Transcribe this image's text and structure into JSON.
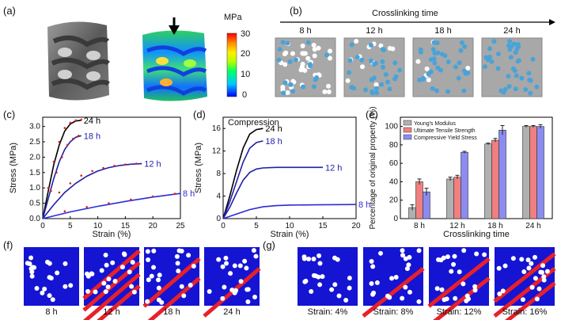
{
  "panel_labels": [
    "(a)",
    "(b)",
    "(c)",
    "(d)",
    "(e)",
    "(f)",
    "(g)"
  ],
  "a": {
    "colorbar_unit": "MPa",
    "colorbar_ticks": [
      "30",
      "20",
      "10",
      "0"
    ],
    "colors": [
      "#0000ff",
      "#00c8ff",
      "#00ff66",
      "#b4ff00",
      "#ffee00",
      "#ff8800",
      "#ff0000"
    ]
  },
  "b": {
    "arrow_label": "Crosslinking time",
    "tiles": [
      {
        "label": "8 h",
        "white": 40,
        "blue": 18
      },
      {
        "label": "12 h",
        "white": 12,
        "blue": 30
      },
      {
        "label": "18 h",
        "white": 6,
        "blue": 34
      },
      {
        "label": "24 h",
        "white": 0,
        "blue": 38
      }
    ],
    "colors": {
      "matrix": "#a8a8a8",
      "white_dot": "#ffffff",
      "blue_dot": "#4aa3d8"
    }
  },
  "f": {
    "tiles": [
      {
        "label": "8 h"
      },
      {
        "label": "12 h"
      },
      {
        "label": "18 h"
      },
      {
        "label": "24 h"
      }
    ],
    "colors": {
      "bg": "#1414d2",
      "band": "#e8202a",
      "dot": "#ffffff"
    }
  },
  "g": {
    "tiles": [
      {
        "label": "Strain: 4%"
      },
      {
        "label": "Strain: 8%"
      },
      {
        "label": "Strain: 12%"
      },
      {
        "label": "Strain: 16%"
      }
    ]
  },
  "chart_data": [
    {
      "panel": "c",
      "type": "line",
      "xlabel": "Strain (%)",
      "ylabel": "Stress (MPa)",
      "xlim": [
        0,
        25
      ],
      "ylim": [
        0,
        3.3
      ],
      "xticks": [
        "0",
        "5",
        "10",
        "15",
        "20",
        "25"
      ],
      "yticks": [
        "0.0",
        "0.5",
        "1.0",
        "1.5",
        "2.0",
        "2.5",
        "3.0"
      ],
      "series": [
        {
          "name": "24 h",
          "color": "#000000",
          "x": [
            0,
            1,
            2,
            3,
            4,
            5,
            6,
            7
          ],
          "y": [
            0,
            0.9,
            1.75,
            2.4,
            2.85,
            3.08,
            3.18,
            3.2
          ]
        },
        {
          "name": "18 h",
          "color": "#1f1fa8",
          "x": [
            0,
            1,
            2,
            3,
            4,
            5,
            6,
            7
          ],
          "y": [
            0,
            0.65,
            1.3,
            1.85,
            2.25,
            2.5,
            2.65,
            2.7
          ]
        },
        {
          "name": "12 h",
          "color": "#1f1fa8",
          "x": [
            0,
            2,
            4,
            6,
            8,
            10,
            12,
            14,
            16,
            18
          ],
          "y": [
            0,
            0.45,
            0.85,
            1.15,
            1.38,
            1.55,
            1.66,
            1.73,
            1.77,
            1.79
          ]
        },
        {
          "name": "8 h",
          "color": "#2b2bd8",
          "x": [
            0,
            5,
            10,
            15,
            20,
            25
          ],
          "y": [
            0,
            0.22,
            0.4,
            0.56,
            0.7,
            0.82
          ]
        }
      ],
      "dots": {
        "color": "#e02020",
        "points": [
          [
            1,
            1.0
          ],
          [
            2,
            1.85
          ],
          [
            3,
            2.5
          ],
          [
            4,
            2.95
          ],
          [
            5,
            3.12
          ],
          [
            6,
            3.2
          ],
          [
            7,
            3.22
          ],
          [
            1.5,
            0.9
          ],
          [
            2.5,
            1.5
          ],
          [
            3.5,
            2.0
          ],
          [
            4.5,
            2.4
          ],
          [
            5.5,
            2.6
          ],
          [
            6.5,
            2.7
          ],
          [
            3,
            0.85
          ],
          [
            5,
            1.15
          ],
          [
            7,
            1.4
          ],
          [
            9,
            1.55
          ],
          [
            11,
            1.65
          ],
          [
            13,
            1.72
          ],
          [
            15,
            1.76
          ],
          [
            17,
            1.79
          ],
          [
            4,
            0.24
          ],
          [
            8,
            0.38
          ],
          [
            12,
            0.5
          ],
          [
            16,
            0.62
          ],
          [
            20,
            0.72
          ],
          [
            24,
            0.81
          ]
        ]
      }
    },
    {
      "panel": "d",
      "type": "line",
      "annotation": "Compression",
      "xlabel": "Strain (%)",
      "ylabel": "Stress (MPa)",
      "xlim": [
        0,
        20
      ],
      "ylim": [
        0,
        18
      ],
      "xticks": [
        "0",
        "5",
        "10",
        "15",
        "20"
      ],
      "yticks": [
        "0",
        "4",
        "8",
        "12",
        "16"
      ],
      "series": [
        {
          "name": "24 h",
          "color": "#000000",
          "x": [
            0,
            1,
            2,
            3,
            4,
            5,
            6
          ],
          "y": [
            0,
            4,
            8.5,
            12.5,
            15,
            15.8,
            16
          ]
        },
        {
          "name": "18 h",
          "color": "#1f1fa8",
          "x": [
            0,
            1,
            2,
            3,
            4,
            5,
            6
          ],
          "y": [
            0,
            3,
            6.5,
            10,
            12.5,
            13.5,
            13.8
          ]
        },
        {
          "name": "12 h",
          "color": "#1f1fa8",
          "x": [
            0,
            1,
            2,
            3,
            4,
            5,
            6,
            8,
            10,
            12,
            15
          ],
          "y": [
            0,
            2,
            4.5,
            6.8,
            8.2,
            8.8,
            9.0,
            9.1,
            9.1,
            9.1,
            9.1
          ]
        },
        {
          "name": "8 h",
          "color": "#2b2bd8",
          "x": [
            0,
            2,
            4,
            6,
            8,
            10,
            14,
            20
          ],
          "y": [
            0,
            0.8,
            1.6,
            2.1,
            2.3,
            2.4,
            2.45,
            2.5
          ]
        }
      ]
    },
    {
      "panel": "e",
      "type": "bar",
      "xlabel": "Crosslinking time",
      "ylabel": "Percentage of original property (%)",
      "ylim": [
        0,
        110
      ],
      "yticks": [
        "0",
        "20",
        "40",
        "60",
        "80",
        "100"
      ],
      "categories": [
        "8 h",
        "12 h",
        "18 h",
        "24 h"
      ],
      "series": [
        {
          "name": "Young's Modulus",
          "color": "#b0b0b0",
          "values": [
            12,
            43,
            81,
            100
          ],
          "errors": [
            3,
            2,
            1,
            1
          ]
        },
        {
          "name": "Ultimate Tensile Strength",
          "color": "#f08080",
          "values": [
            40,
            45,
            85,
            100
          ],
          "errors": [
            3,
            2,
            2,
            1
          ]
        },
        {
          "name": "Compressive Yield Stress",
          "color": "#8c8cf0",
          "values": [
            29,
            72,
            96,
            100
          ],
          "errors": [
            4,
            1,
            5,
            2
          ]
        }
      ]
    }
  ]
}
